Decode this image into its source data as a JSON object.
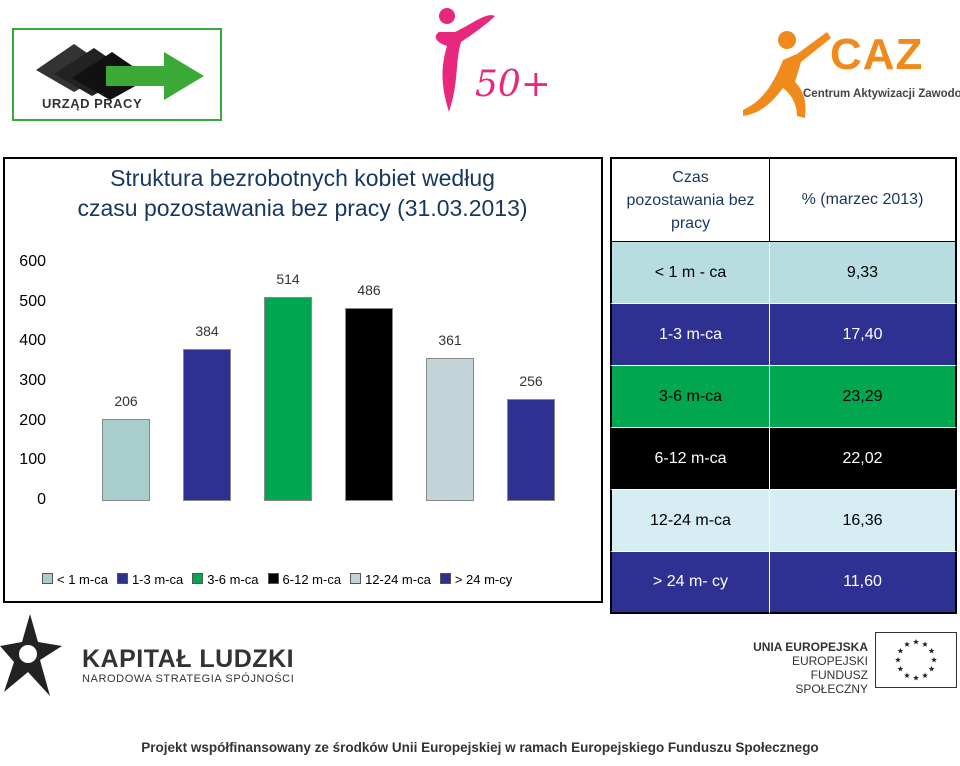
{
  "logos": {
    "urzad_pracy": "URZĄD PRACY",
    "fifty_plus": "50+",
    "caz_title": "CAZ",
    "caz_subtitle": "Centrum Aktywizacji Zawodowej",
    "kapital_title": "KAPITAŁ LUDZKI",
    "kapital_subtitle": "NARODOWA STRATEGIA SPÓJNOŚCI",
    "ue_line1": "UNIA EUROPEJSKA",
    "ue_line2": "EUROPEJSKI",
    "ue_line3": "FUNDUSZ SPOŁECZNY"
  },
  "chart_data": {
    "type": "bar",
    "title_line1": "Struktura bezrobotnych kobiet według",
    "title_line2": "czasu pozostawania bez pracy (31.03.2013)",
    "categories": [
      "< 1 m-ca",
      "1-3 m-ca",
      "3-6 m-ca",
      "6-12 m-ca",
      "12-24 m-ca",
      "> 24 m-cy"
    ],
    "values": [
      206,
      384,
      514,
      486,
      361,
      256
    ],
    "colors": [
      "#a9cccc",
      "#2e3192",
      "#00a650",
      "#000000",
      "#c3d4d8",
      "#2e3192"
    ],
    "yticks": [
      "600",
      "500",
      "400",
      "300",
      "200",
      "100",
      "0"
    ],
    "ylim": [
      0,
      600
    ],
    "grid": false,
    "legend_position": "bottom"
  },
  "table": {
    "header_col1": "Czas pozostawania bez pracy",
    "header_col2": "% (marzec 2013)",
    "rows": [
      {
        "label": "< 1 m - ca",
        "value": "9,33",
        "bg": "#b8dde1",
        "fg": "#000000"
      },
      {
        "label": "1-3 m-ca",
        "value": "17,40",
        "bg": "#2e3192",
        "fg": "#ffffff"
      },
      {
        "label": "3-6 m-ca",
        "value": "23,29",
        "bg": "#00a650",
        "fg": "#000000"
      },
      {
        "label": "6-12 m-ca",
        "value": "22,02",
        "bg": "#000000",
        "fg": "#ffffff"
      },
      {
        "label": "12-24 m-ca",
        "value": "16,36",
        "bg": "#d5edf3",
        "fg": "#000000"
      },
      {
        "label": "> 24 m- cy",
        "value": "11,60",
        "bg": "#2e3192",
        "fg": "#ffffff"
      }
    ]
  },
  "footer": "Projekt współfinansowany ze środków Unii Europejskiej w ramach Europejskiego Funduszu Społecznego"
}
